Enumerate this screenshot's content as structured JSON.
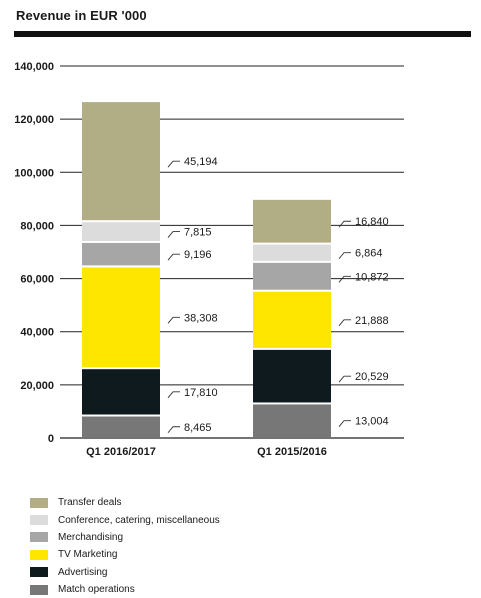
{
  "chart_data": {
    "type": "bar",
    "stacked": true,
    "title": "Revenue in EUR '000",
    "categories": [
      "Q1 2016/2017",
      "Q1 2015/2016"
    ],
    "ylim": [
      0,
      140000
    ],
    "yticks": [
      "0",
      "20,000",
      "40,000",
      "60,000",
      "80,000",
      "100,000",
      "120,000",
      "140,000"
    ],
    "ytick_values": [
      0,
      20000,
      40000,
      60000,
      80000,
      100000,
      120000,
      140000
    ],
    "grid": true,
    "legend_position": "bottom-left",
    "series": [
      {
        "name": "Match operations",
        "color": "#777777",
        "values": [
          8465,
          13004
        ],
        "labels": [
          "8,465",
          "13,004"
        ]
      },
      {
        "name": "Advertising",
        "color": "#0e1a1e",
        "values": [
          17810,
          20529
        ],
        "labels": [
          "17,810",
          "20,529"
        ]
      },
      {
        "name": "TV Marketing",
        "color": "#ffe600",
        "values": [
          38308,
          21888
        ],
        "labels": [
          "38,308",
          "21,888"
        ]
      },
      {
        "name": "Merchandising",
        "color": "#a6a6a6",
        "values": [
          9196,
          10872
        ],
        "labels": [
          "9,196",
          "10,872"
        ]
      },
      {
        "name": "Conference, catering, miscellaneous",
        "color": "#dcdcdc",
        "values": [
          7815,
          6864
        ],
        "labels": [
          "7,815",
          "6,864"
        ]
      },
      {
        "name": "Transfer deals",
        "color": "#b1ad85",
        "values": [
          45194,
          16840
        ],
        "labels": [
          "45,194",
          "16,840"
        ]
      }
    ],
    "legend_order": [
      "Transfer deals",
      "Conference, catering, miscellaneous",
      "Merchandising",
      "TV Marketing",
      "Advertising",
      "Match operations"
    ]
  }
}
